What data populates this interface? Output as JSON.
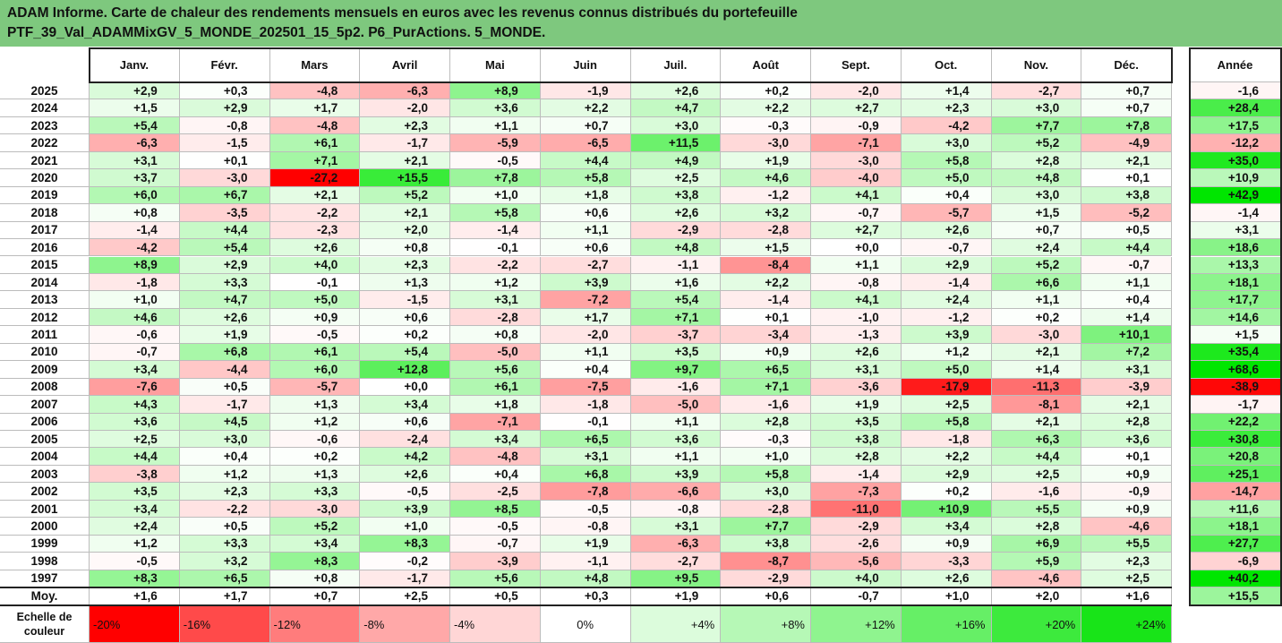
{
  "title": {
    "line1": "ADAM Informe. Carte de chaleur des rendements mensuels en euros avec les revenus connus distribués du portefeuille",
    "line2": "PTF_39_Val_ADAMMixGV_5_MONDE_202501_15_5p2. P6_PurActions. 5_MONDE."
  },
  "chart_data": {
    "type": "heatmap",
    "title": "ADAM Informe. Carte de chaleur des rendements mensuels en euros avec les revenus connus distribués du portefeuille PTF_39_Val_ADAMMixGV_5_MONDE_202501_15_5p2. P6_PurActions. 5_MONDE.",
    "columns": [
      "Janv.",
      "Févr.",
      "Mars",
      "Avril",
      "Mai",
      "Juin",
      "Juil.",
      "Août",
      "Sept.",
      "Oct.",
      "Nov.",
      "Déc."
    ],
    "annual_header": "Année",
    "rows": [
      {
        "year": "2025",
        "values": [
          "+2,9",
          "+0,3",
          "-4,8",
          "-6,3",
          "+8,9",
          "-1,9",
          "+2,6",
          "+0,2",
          "-2,0",
          "+1,4",
          "-2,7",
          "+0,7"
        ],
        "annual": "-1,6"
      },
      {
        "year": "2024",
        "values": [
          "+1,5",
          "+2,9",
          "+1,7",
          "-2,0",
          "+3,6",
          "+2,2",
          "+4,7",
          "+2,2",
          "+2,7",
          "+2,3",
          "+3,0",
          "+0,7"
        ],
        "annual": "+28,4"
      },
      {
        "year": "2023",
        "values": [
          "+5,4",
          "-0,8",
          "-4,8",
          "+2,3",
          "+1,1",
          "+0,7",
          "+3,0",
          "-0,3",
          "-0,9",
          "-4,2",
          "+7,7",
          "+7,8"
        ],
        "annual": "+17,5"
      },
      {
        "year": "2022",
        "values": [
          "-6,3",
          "-1,5",
          "+6,1",
          "-1,7",
          "-5,9",
          "-6,5",
          "+11,5",
          "-3,0",
          "-7,1",
          "+3,0",
          "+5,2",
          "-4,9"
        ],
        "annual": "-12,2"
      },
      {
        "year": "2021",
        "values": [
          "+3,1",
          "+0,1",
          "+7,1",
          "+2,1",
          "-0,5",
          "+4,4",
          "+4,9",
          "+1,9",
          "-3,0",
          "+5,8",
          "+2,8",
          "+2,1"
        ],
        "annual": "+35,0"
      },
      {
        "year": "2020",
        "values": [
          "+3,7",
          "-3,0",
          "-27,2",
          "+15,5",
          "+7,8",
          "+5,8",
          "+2,5",
          "+4,6",
          "-4,0",
          "+5,0",
          "+4,8",
          "+0,1"
        ],
        "annual": "+10,9"
      },
      {
        "year": "2019",
        "values": [
          "+6,0",
          "+6,7",
          "+2,1",
          "+5,2",
          "+1,0",
          "+1,8",
          "+3,8",
          "-1,2",
          "+4,1",
          "+0,4",
          "+3,0",
          "+3,8"
        ],
        "annual": "+42,9"
      },
      {
        "year": "2018",
        "values": [
          "+0,8",
          "-3,5",
          "-2,2",
          "+2,1",
          "+5,8",
          "+0,6",
          "+2,6",
          "+3,2",
          "-0,7",
          "-5,7",
          "+1,5",
          "-5,2"
        ],
        "annual": "-1,4"
      },
      {
        "year": "2017",
        "values": [
          "-1,4",
          "+4,4",
          "-2,3",
          "+2,0",
          "-1,4",
          "+1,1",
          "-2,9",
          "-2,8",
          "+2,7",
          "+2,6",
          "+0,7",
          "+0,5"
        ],
        "annual": "+3,1"
      },
      {
        "year": "2016",
        "values": [
          "-4,2",
          "+5,4",
          "+2,6",
          "+0,8",
          "-0,1",
          "+0,6",
          "+4,8",
          "+1,5",
          "+0,0",
          "-0,7",
          "+2,4",
          "+4,4"
        ],
        "annual": "+18,6"
      },
      {
        "year": "2015",
        "values": [
          "+8,9",
          "+2,9",
          "+4,0",
          "+2,3",
          "-2,2",
          "-2,7",
          "-1,1",
          "-8,4",
          "+1,1",
          "+2,9",
          "+5,2",
          "-0,7"
        ],
        "annual": "+13,3"
      },
      {
        "year": "2014",
        "values": [
          "-1,8",
          "+3,3",
          "-0,1",
          "+1,3",
          "+1,2",
          "+3,9",
          "+1,6",
          "+2,2",
          "-0,8",
          "-1,4",
          "+6,6",
          "+1,1"
        ],
        "annual": "+18,1"
      },
      {
        "year": "2013",
        "values": [
          "+1,0",
          "+4,7",
          "+5,0",
          "-1,5",
          "+3,1",
          "-7,2",
          "+5,4",
          "-1,4",
          "+4,1",
          "+2,4",
          "+1,1",
          "+0,4"
        ],
        "annual": "+17,7"
      },
      {
        "year": "2012",
        "values": [
          "+4,6",
          "+2,6",
          "+0,9",
          "+0,6",
          "-2,8",
          "+1,7",
          "+7,1",
          "+0,1",
          "-1,0",
          "-1,2",
          "+0,2",
          "+1,4"
        ],
        "annual": "+14,6"
      },
      {
        "year": "2011",
        "values": [
          "-0,6",
          "+1,9",
          "-0,5",
          "+0,2",
          "+0,8",
          "-2,0",
          "-3,7",
          "-3,4",
          "-1,3",
          "+3,9",
          "-3,0",
          "+10,1"
        ],
        "annual": "+1,5"
      },
      {
        "year": "2010",
        "values": [
          "-0,7",
          "+6,8",
          "+6,1",
          "+5,4",
          "-5,0",
          "+1,1",
          "+3,5",
          "+0,9",
          "+2,6",
          "+1,2",
          "+2,1",
          "+7,2"
        ],
        "annual": "+35,4"
      },
      {
        "year": "2009",
        "values": [
          "+3,4",
          "-4,4",
          "+6,0",
          "+12,8",
          "+5,6",
          "+0,4",
          "+9,7",
          "+6,5",
          "+3,1",
          "+5,0",
          "+1,4",
          "+3,1"
        ],
        "annual": "+68,6"
      },
      {
        "year": "2008",
        "values": [
          "-7,6",
          "+0,5",
          "-5,7",
          "+0,0",
          "+6,1",
          "-7,5",
          "-1,6",
          "+7,1",
          "-3,6",
          "-17,9",
          "-11,3",
          "-3,9"
        ],
        "annual": "-38,9"
      },
      {
        "year": "2007",
        "values": [
          "+4,3",
          "-1,7",
          "+1,3",
          "+3,4",
          "+1,8",
          "-1,8",
          "-5,0",
          "-1,6",
          "+1,9",
          "+2,5",
          "-8,1",
          "+2,1"
        ],
        "annual": "-1,7"
      },
      {
        "year": "2006",
        "values": [
          "+3,6",
          "+4,5",
          "+1,2",
          "+0,6",
          "-7,1",
          "-0,1",
          "+1,1",
          "+2,8",
          "+3,5",
          "+5,8",
          "+2,1",
          "+2,8"
        ],
        "annual": "+22,2"
      },
      {
        "year": "2005",
        "values": [
          "+2,5",
          "+3,0",
          "-0,6",
          "-2,4",
          "+3,4",
          "+6,5",
          "+3,6",
          "-0,3",
          "+3,8",
          "-1,8",
          "+6,3",
          "+3,6"
        ],
        "annual": "+30,8"
      },
      {
        "year": "2004",
        "values": [
          "+4,4",
          "+0,4",
          "+0,2",
          "+4,2",
          "-4,8",
          "+3,1",
          "+1,1",
          "+1,0",
          "+2,8",
          "+2,2",
          "+4,4",
          "+0,1"
        ],
        "annual": "+20,8"
      },
      {
        "year": "2003",
        "values": [
          "-3,8",
          "+1,2",
          "+1,3",
          "+2,6",
          "+0,4",
          "+6,8",
          "+3,9",
          "+5,8",
          "-1,4",
          "+2,9",
          "+2,5",
          "+0,9"
        ],
        "annual": "+25,1"
      },
      {
        "year": "2002",
        "values": [
          "+3,5",
          "+2,3",
          "+3,3",
          "-0,5",
          "-2,5",
          "-7,8",
          "-6,6",
          "+3,0",
          "-7,3",
          "+0,2",
          "-1,6",
          "-0,9"
        ],
        "annual": "-14,7"
      },
      {
        "year": "2001",
        "values": [
          "+3,4",
          "-2,2",
          "-3,0",
          "+3,9",
          "+8,5",
          "-0,5",
          "-0,8",
          "-2,8",
          "-11,0",
          "+10,9",
          "+5,5",
          "+0,9"
        ],
        "annual": "+11,6"
      },
      {
        "year": "2000",
        "values": [
          "+2,4",
          "+0,5",
          "+5,2",
          "+1,0",
          "-0,5",
          "-0,8",
          "+3,1",
          "+7,7",
          "-2,9",
          "+3,4",
          "+2,8",
          "-4,6"
        ],
        "annual": "+18,1"
      },
      {
        "year": "1999",
        "values": [
          "+1,2",
          "+3,3",
          "+3,4",
          "+8,3",
          "-0,7",
          "+1,9",
          "-6,3",
          "+3,8",
          "-2,6",
          "+0,9",
          "+6,9",
          "+5,5"
        ],
        "annual": "+27,7"
      },
      {
        "year": "1998",
        "values": [
          "-0,5",
          "+3,2",
          "+8,3",
          "-0,2",
          "-3,9",
          "-1,1",
          "-2,7",
          "-8,7",
          "-5,6",
          "-3,3",
          "+5,9",
          "+2,3"
        ],
        "annual": "-6,9"
      },
      {
        "year": "1997",
        "values": [
          "+8,3",
          "+6,5",
          "+0,8",
          "-1,7",
          "+5,6",
          "+4,8",
          "+9,5",
          "-2,9",
          "+4,0",
          "+2,6",
          "-4,6",
          "+2,5"
        ],
        "annual": "+40,2"
      }
    ],
    "average": {
      "label": "Moy.",
      "values": [
        "+1,6",
        "+1,7",
        "+0,7",
        "+2,5",
        "+0,5",
        "+0,3",
        "+1,9",
        "+0,6",
        "-0,7",
        "+1,0",
        "+2,0",
        "+1,6"
      ],
      "annual": "+15,5"
    },
    "color_scale": {
      "label": "Echelle de couleur",
      "stops": [
        "-20%",
        "-16%",
        "-12%",
        "-8%",
        "-4%",
        "0%",
        "+4%",
        "+8%",
        "+12%",
        "+16%",
        "+20%",
        "+24%"
      ],
      "stop_values": [
        -20,
        -16,
        -12,
        -8,
        -4,
        0,
        4,
        8,
        12,
        16,
        20,
        24
      ],
      "stop_colors": [
        "#ff0000",
        "#ff4a4a",
        "#ff7c7c",
        "#ffa8a8",
        "#ffd6d6",
        "#ffffff",
        "#dcfcdc",
        "#b6f8b6",
        "#8ff48f",
        "#66ef66",
        "#3dea3d",
        "#18e418"
      ],
      "monthly_range": [
        -20,
        20
      ],
      "annual_range": [
        -40,
        40
      ],
      "negative_color": "#ff0000",
      "positive_color": "#00e600"
    }
  }
}
